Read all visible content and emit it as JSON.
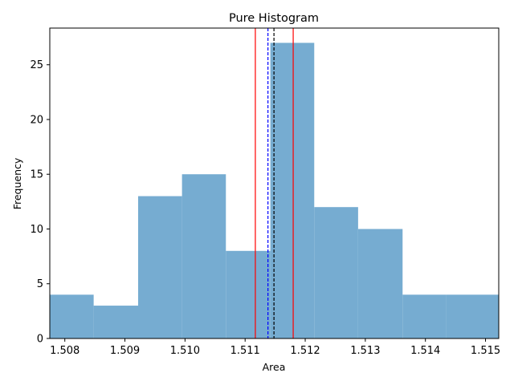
{
  "chart_data": {
    "type": "bar",
    "title": "Pure Histogram",
    "xlabel": "Area",
    "ylabel": "Frequency",
    "bin_edges": [
      1.50775,
      1.50848,
      1.50922,
      1.50995,
      1.51068,
      1.51142,
      1.51215,
      1.51288,
      1.51362,
      1.51435,
      1.51508
    ],
    "values": [
      4,
      3,
      13,
      15,
      8,
      27,
      12,
      10,
      4,
      4
    ],
    "xlim": [
      1.50775,
      1.51522
    ],
    "ylim": [
      0,
      28.35
    ],
    "xticks": [
      1.508,
      1.509,
      1.51,
      1.511,
      1.512,
      1.513,
      1.514,
      1.515
    ],
    "xtick_labels": [
      "1.508",
      "1.509",
      "1.510",
      "1.511",
      "1.512",
      "1.513",
      "1.514",
      "1.515"
    ],
    "yticks": [
      0,
      5,
      10,
      15,
      20,
      25
    ],
    "ytick_labels": [
      "0",
      "5",
      "10",
      "15",
      "20",
      "25"
    ],
    "bar_color": "#76acd1",
    "vlines": [
      {
        "x": 1.51117,
        "color": "#ff0000",
        "style": "solid"
      },
      {
        "x": 1.51138,
        "color": "#0000ff",
        "style": "dashed"
      },
      {
        "x": 1.51148,
        "color": "#000000",
        "style": "dashed"
      },
      {
        "x": 1.5118,
        "color": "#ff0000",
        "style": "solid"
      }
    ],
    "grid": false,
    "legend": "none"
  }
}
